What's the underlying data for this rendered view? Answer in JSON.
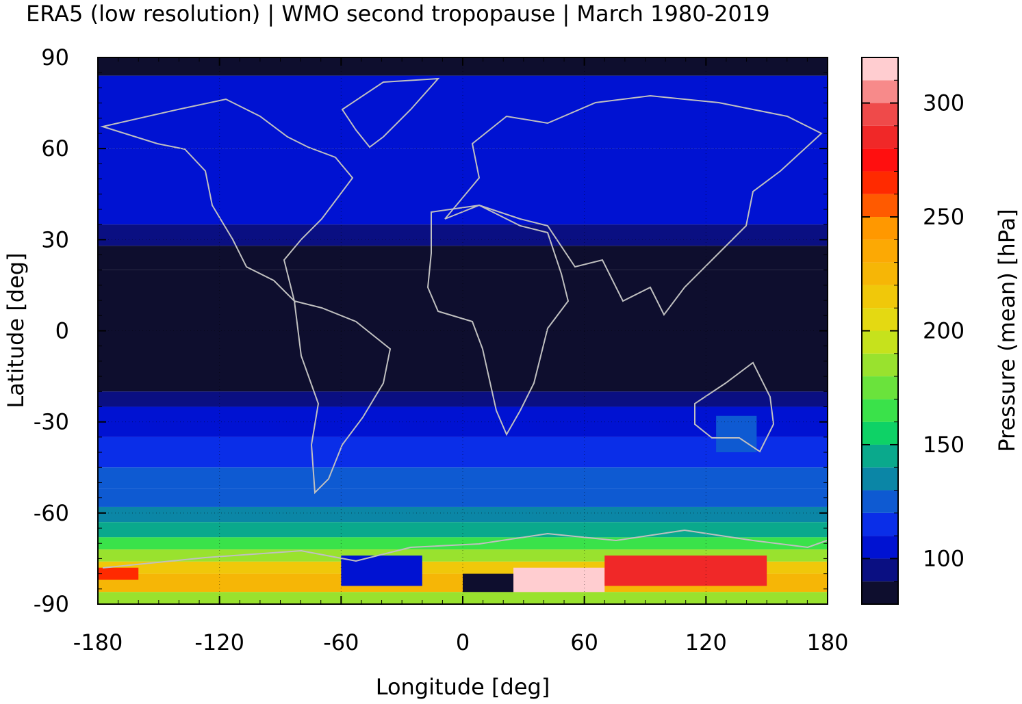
{
  "chart_data": {
    "type": "heatmap",
    "title": "ERA5 (low resolution) | WMO second tropopause | March 1980-2019",
    "xlabel": "Longitude [deg]",
    "ylabel": "Latitude [deg]",
    "xlim": [
      -180,
      180
    ],
    "ylim": [
      -90,
      90
    ],
    "x_ticks": [
      -180,
      -120,
      -60,
      0,
      60,
      120,
      180
    ],
    "y_ticks": [
      90,
      60,
      30,
      0,
      -30,
      -60,
      -90
    ],
    "x_tick_labels": [
      "-180",
      "-120",
      "-60",
      "0",
      "60",
      "120",
      "180"
    ],
    "y_tick_labels": [
      "90",
      "60",
      "30",
      "0",
      "-30",
      "-60",
      "-90"
    ],
    "grid": true,
    "colorbar": {
      "label": "Pressure (mean) [hPa]",
      "range": [
        80,
        320
      ],
      "ticks": [
        100,
        150,
        200,
        250,
        300
      ],
      "tick_labels": [
        "100",
        "150",
        "200",
        "250",
        "300"
      ],
      "levels": [
        {
          "from": 80,
          "to": 90,
          "color": "#0e0e2e"
        },
        {
          "from": 90,
          "to": 100,
          "color": "#0a0f82"
        },
        {
          "from": 100,
          "to": 110,
          "color": "#0012d2"
        },
        {
          "from": 110,
          "to": 120,
          "color": "#0a2ee8"
        },
        {
          "from": 120,
          "to": 130,
          "color": "#0e5ad2"
        },
        {
          "from": 130,
          "to": 140,
          "color": "#0b86a6"
        },
        {
          "from": 140,
          "to": 150,
          "color": "#0aa98c"
        },
        {
          "from": 150,
          "to": 160,
          "color": "#0ed266"
        },
        {
          "from": 160,
          "to": 170,
          "color": "#3ae24a"
        },
        {
          "from": 170,
          "to": 180,
          "color": "#6ae33c"
        },
        {
          "from": 180,
          "to": 190,
          "color": "#99e22e"
        },
        {
          "from": 190,
          "to": 200,
          "color": "#c6e21c"
        },
        {
          "from": 200,
          "to": 210,
          "color": "#e4d912"
        },
        {
          "from": 210,
          "to": 220,
          "color": "#f0c80a"
        },
        {
          "from": 220,
          "to": 230,
          "color": "#f6b606"
        },
        {
          "from": 230,
          "to": 240,
          "color": "#fca904"
        },
        {
          "from": 240,
          "to": 250,
          "color": "#ff9800"
        },
        {
          "from": 250,
          "to": 260,
          "color": "#ff5a00"
        },
        {
          "from": 260,
          "to": 270,
          "color": "#ff2a00"
        },
        {
          "from": 270,
          "to": 280,
          "color": "#ff0f0f"
        },
        {
          "from": 280,
          "to": 290,
          "color": "#f02828"
        },
        {
          "from": 290,
          "to": 300,
          "color": "#ef4a4a"
        },
        {
          "from": 300,
          "to": 310,
          "color": "#f78a8a"
        },
        {
          "from": 310,
          "to": 320,
          "color": "#ffcdd0"
        }
      ]
    },
    "latitude_bands": [
      {
        "lat": [
          84,
          90
        ],
        "pressure": 85
      },
      {
        "lat": [
          60,
          84
        ],
        "pressure": 102
      },
      {
        "lat": [
          35,
          60
        ],
        "pressure": 105
      },
      {
        "lat": [
          28,
          35
        ],
        "pressure": 96
      },
      {
        "lat": [
          20,
          28
        ],
        "pressure": 88
      },
      {
        "lat": [
          -20,
          20
        ],
        "pressure": 84
      },
      {
        "lat": [
          -25,
          -20
        ],
        "pressure": 95
      },
      {
        "lat": [
          -35,
          -25
        ],
        "pressure": 106
      },
      {
        "lat": [
          -45,
          -35
        ],
        "pressure": 112
      },
      {
        "lat": [
          -52,
          -45
        ],
        "pressure": 120
      },
      {
        "lat": [
          -58,
          -52
        ],
        "pressure": 128
      },
      {
        "lat": [
          -63,
          -58
        ],
        "pressure": 135
      },
      {
        "lat": [
          -68,
          -63
        ],
        "pressure": 145
      },
      {
        "lat": [
          -72,
          -68
        ],
        "pressure": 160
      },
      {
        "lat": [
          -76,
          -72
        ],
        "pressure": 185
      },
      {
        "lat": [
          -80,
          -76
        ],
        "pressure": 210
      },
      {
        "lat": [
          -86,
          -80
        ],
        "pressure": 225
      },
      {
        "lat": [
          -90,
          -86
        ],
        "pressure": 180
      }
    ],
    "regions": [
      {
        "lon": [
          25,
          70
        ],
        "lat": [
          -86,
          -78
        ],
        "pressure": 315
      },
      {
        "lon": [
          70,
          150
        ],
        "lat": [
          -84,
          -74
        ],
        "pressure": 285
      },
      {
        "lon": [
          0,
          25
        ],
        "lat": [
          -86,
          -80
        ],
        "pressure": 85
      },
      {
        "lon": [
          -60,
          -20
        ],
        "lat": [
          -84,
          -74
        ],
        "pressure": 100
      },
      {
        "lon": [
          -180,
          -160
        ],
        "lat": [
          -82,
          -78
        ],
        "pressure": 260
      },
      {
        "lon": [
          125,
          145
        ],
        "lat": [
          -40,
          -28
        ],
        "pressure": 120
      }
    ]
  }
}
